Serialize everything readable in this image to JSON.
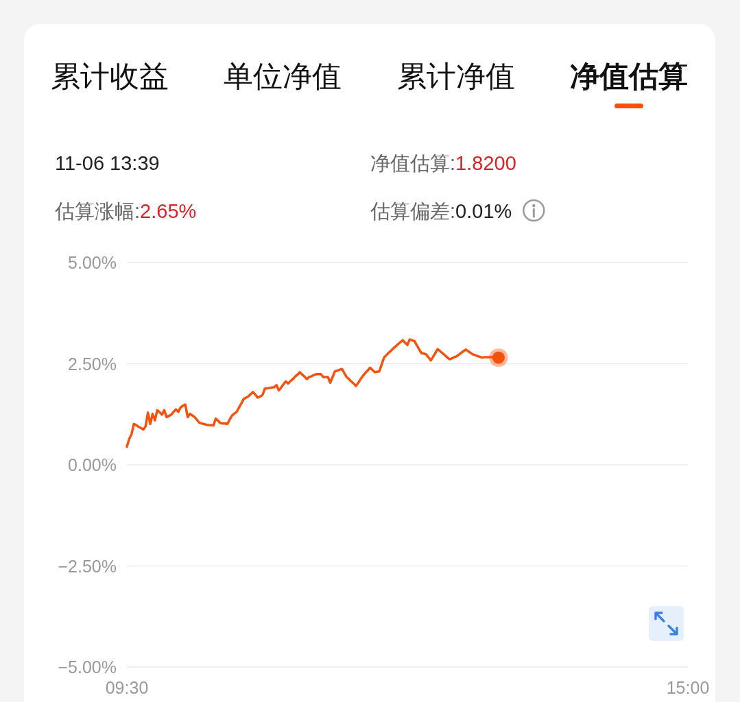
{
  "chart_data": {
    "type": "line",
    "annotations": [
      "累计收益",
      "单位净值",
      "累计净值",
      "净值估算",
      "11-06 13:39",
      "净值估算:1.8200",
      "估算涨幅:2.65%",
      "估算偏差:0.01%"
    ],
    "categories": [
      "09:30",
      null,
      null,
      null,
      null,
      null,
      null,
      null,
      null,
      null,
      null,
      null,
      null,
      null,
      null,
      null,
      null,
      null,
      null,
      null,
      null,
      null,
      null,
      null,
      null,
      null,
      null,
      null,
      null,
      null,
      null,
      null,
      null,
      null,
      null,
      null,
      null,
      null,
      null,
      null,
      null,
      null,
      null,
      null,
      null,
      null,
      null,
      null,
      null,
      null,
      null,
      null,
      null,
      null,
      null,
      null,
      null,
      null,
      null,
      null,
      null,
      null,
      null,
      null,
      null,
      null,
      null,
      null,
      null,
      null,
      null,
      null,
      null,
      null,
      null,
      null,
      null,
      null,
      null,
      null,
      null,
      null,
      null,
      null,
      null,
      null,
      null,
      null,
      null,
      null,
      null,
      null,
      null,
      null,
      null,
      null,
      null,
      null,
      null,
      null,
      null,
      null,
      null,
      null,
      null,
      null,
      null,
      null,
      null,
      null,
      null,
      null,
      null,
      null,
      null,
      null,
      null,
      null,
      null,
      null,
      null,
      null,
      null,
      null,
      null,
      null,
      null,
      null,
      null,
      null,
      null,
      null,
      null,
      null,
      null,
      null,
      null,
      null,
      null,
      null,
      null,
      null,
      null,
      null,
      null,
      null,
      null,
      null,
      null,
      null,
      null,
      null,
      null,
      null,
      null,
      null,
      null,
      null,
      null,
      null,
      null,
      null,
      null,
      null,
      null,
      null,
      null,
      null,
      null,
      null,
      null,
      null,
      null,
      null,
      null,
      null,
      null,
      null,
      null,
      null,
      null,
      null,
      null,
      null,
      null,
      null,
      null,
      null,
      null,
      null,
      null,
      null,
      null,
      null,
      null,
      null,
      null,
      null,
      null,
      null,
      null,
      null,
      null,
      null,
      null,
      null,
      null,
      null,
      null,
      null,
      null,
      null,
      null,
      null,
      null,
      null,
      null,
      null,
      null,
      null,
      null,
      null,
      null,
      null,
      null,
      null,
      null,
      null,
      null,
      null,
      null,
      null,
      null,
      null,
      null,
      null,
      null,
      null,
      null,
      null,
      "15:00"
    ],
    "series": [
      {
        "color": "#f4520f",
        "values": [
          0.45,
          0.64,
          0.76,
          1.01,
          0.98,
          0.94,
          0.91,
          0.87,
          0.95,
          1.29,
          1.01,
          1.26,
          1.1,
          1.35,
          1.3,
          1.24,
          1.35,
          1.18,
          1.21,
          1.24,
          1.31,
          1.37,
          1.31,
          1.42,
          1.46,
          1.49,
          1.18,
          1.26,
          1.22,
          1.18,
          1.11,
          1.04,
          1.02,
          1.01,
          0.99,
          0.98,
          0.98,
          0.97,
          1.14,
          1.09,
          1.03,
          1.02,
          1.02,
          1.01,
          1.12,
          1.22,
          1.27,
          1.31,
          1.42,
          1.52,
          1.63,
          1.66,
          1.69,
          1.75,
          1.8,
          1.73,
          1.66,
          1.69,
          1.72,
          1.88,
          1.89,
          1.9,
          1.91,
          1.92,
          1.97,
          1.84,
          1.91,
          1.99,
          2.06,
          2.01,
          2.07,
          2.12,
          2.18,
          2.23,
          2.29,
          2.23,
          2.18,
          2.12,
          2.17,
          2.19,
          2.22,
          2.24,
          2.24,
          2.24,
          2.17,
          2.17,
          2.17,
          2.03,
          2.17,
          2.31,
          2.33,
          2.35,
          2.37,
          2.27,
          2.17,
          2.12,
          2.06,
          2.01,
          1.95,
          2.03,
          2.12,
          2.2,
          2.27,
          2.33,
          2.4,
          2.35,
          2.29,
          2.3,
          2.31,
          2.48,
          2.65,
          2.71,
          2.77,
          2.82,
          2.88,
          2.93,
          2.98,
          3.03,
          3.08,
          3.02,
          2.96,
          3.1,
          3.08,
          3.06,
          2.96,
          2.86,
          2.76,
          2.75,
          2.73,
          2.66,
          2.58,
          2.67,
          2.77,
          2.86,
          2.81,
          2.76,
          2.71,
          2.66,
          2.61,
          2.63,
          2.66,
          2.68,
          2.72,
          2.77,
          2.81,
          2.85,
          2.81,
          2.77,
          2.73,
          2.71,
          2.69,
          2.67,
          2.65,
          2.66,
          2.66,
          2.66,
          2.66,
          2.65,
          2.65,
          2.65,
          null,
          null,
          null,
          null,
          null,
          null,
          null,
          null,
          null,
          null,
          null,
          null,
          null,
          null,
          null,
          null,
          null,
          null,
          null,
          null,
          null,
          null,
          null,
          null,
          null,
          null,
          null,
          null,
          null,
          null,
          null,
          null,
          null,
          null,
          null,
          null,
          null,
          null,
          null,
          null,
          null,
          null,
          null,
          null,
          null,
          null,
          null,
          null,
          null,
          null,
          null,
          null,
          null,
          null,
          null,
          null,
          null,
          null,
          null,
          null,
          null,
          null,
          null,
          null,
          null,
          null,
          null,
          null,
          null,
          null,
          null,
          null,
          null,
          null,
          null,
          null,
          null,
          null,
          null,
          null,
          null
        ]
      },
      {
        "type": "scatter",
        "color": "#f4520f",
        "values": [
          null,
          null,
          null,
          null,
          null,
          null,
          null,
          null,
          null,
          null,
          null,
          null,
          null,
          null,
          null,
          null,
          null,
          null,
          null,
          null,
          null,
          null,
          null,
          null,
          null,
          null,
          null,
          null,
          null,
          null,
          null,
          null,
          null,
          null,
          null,
          null,
          null,
          null,
          null,
          null,
          null,
          null,
          null,
          null,
          null,
          null,
          null,
          null,
          null,
          null,
          null,
          null,
          null,
          null,
          null,
          null,
          null,
          null,
          null,
          null,
          null,
          null,
          null,
          null,
          null,
          null,
          null,
          null,
          null,
          null,
          null,
          null,
          null,
          null,
          null,
          null,
          null,
          null,
          null,
          null,
          null,
          null,
          null,
          null,
          null,
          null,
          null,
          null,
          null,
          null,
          null,
          null,
          null,
          null,
          null,
          null,
          null,
          null,
          null,
          null,
          null,
          null,
          null,
          null,
          null,
          null,
          null,
          null,
          null,
          null,
          null,
          null,
          null,
          null,
          null,
          null,
          null,
          null,
          null,
          null,
          null,
          null,
          null,
          null,
          null,
          null,
          null,
          null,
          null,
          null,
          null,
          null,
          null,
          null,
          null,
          null,
          null,
          null,
          null,
          null,
          null,
          null,
          null,
          null,
          null,
          null,
          null,
          null,
          null,
          null,
          null,
          null,
          null,
          null,
          null,
          null,
          null,
          null,
          null,
          2.65,
          null,
          null,
          null,
          null,
          null,
          null,
          null,
          null,
          null,
          null,
          null,
          null,
          null,
          null,
          null,
          null,
          null,
          null,
          null,
          null,
          null,
          null,
          null,
          null,
          null,
          null,
          null,
          null,
          null,
          null,
          null,
          null,
          null,
          null,
          null,
          null,
          null,
          null,
          null,
          null,
          null,
          null,
          null,
          null,
          null,
          null,
          null,
          null,
          null,
          null,
          null,
          null,
          null,
          null,
          null,
          null,
          null,
          null,
          null,
          null,
          null,
          null,
          null,
          null,
          null,
          null,
          null,
          null,
          null,
          null,
          null,
          null,
          null,
          null,
          null,
          null,
          null,
          null,
          null,
          null,
          null
        ]
      }
    ],
    "ylim": [
      -5,
      5
    ],
    "yticks": [
      {
        "value": 5,
        "label": "5.00%"
      },
      {
        "value": 2.5,
        "label": "2.50%"
      },
      {
        "value": 0,
        "label": "0.00%"
      },
      {
        "value": -2.5,
        "label": "−2.50%"
      },
      {
        "value": -5,
        "label": "−5.00%"
      }
    ],
    "grid": "y"
  }
}
